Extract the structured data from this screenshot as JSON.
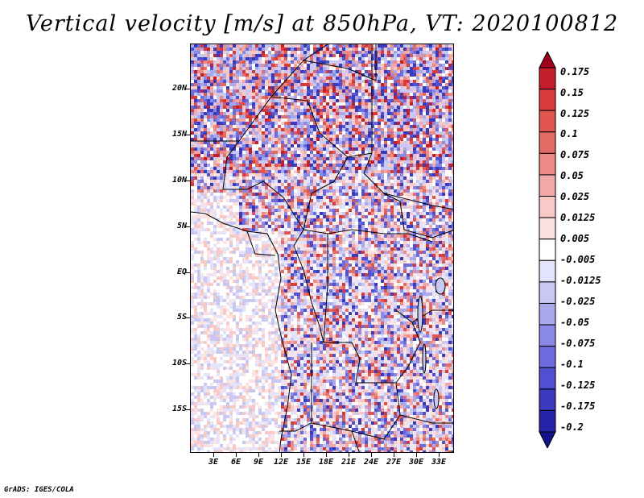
{
  "title": "Vertical velocity [m/s] at 850hPa, VT: 2020100812",
  "footer": "GrADS: IGES/COLA",
  "map": {
    "region": "Central Africa",
    "lat_labels": [
      "20N",
      "15N",
      "10N",
      "5N",
      "EQ",
      "5S",
      "10S",
      "15S"
    ],
    "lon_labels": [
      "3E",
      "6E",
      "9E",
      "12E",
      "15E",
      "18E",
      "21E",
      "24E",
      "27E",
      "30E",
      "33E"
    ]
  },
  "colorbar": {
    "labels": [
      "0.175",
      "0.15",
      "0.125",
      "0.1",
      "0.075",
      "0.05",
      "0.025",
      "0.0125",
      "0.005",
      "-0.005",
      "-0.0125",
      "-0.025",
      "-0.05",
      "-0.075",
      "-0.1",
      "-0.125",
      "-0.175",
      "-0.2"
    ],
    "colors": [
      "#a0001e",
      "#c41e2a",
      "#d83a3a",
      "#e05550",
      "#e56c66",
      "#ec8a86",
      "#f2a8a6",
      "#f7cac8",
      "#fbe3e3",
      "#ffffff",
      "#e3e3fb",
      "#c8c8f2",
      "#a8a8ec",
      "#8a8ae6",
      "#6c6cde",
      "#5050d2",
      "#3a3abf",
      "#2323a8",
      "#12128a"
    ]
  }
}
